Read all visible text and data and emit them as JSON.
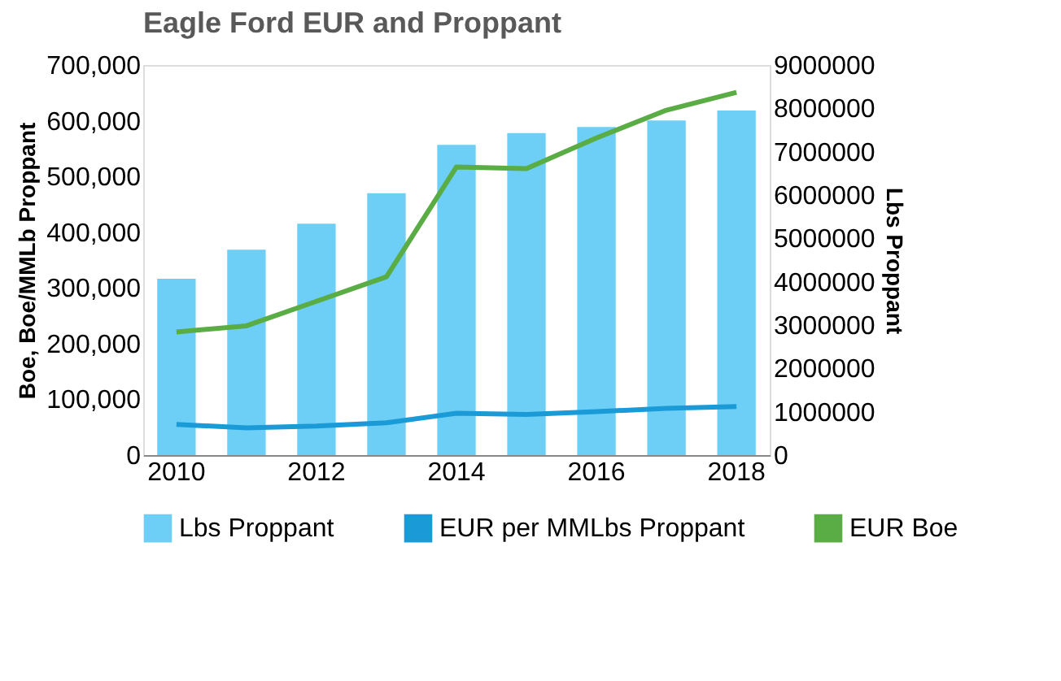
{
  "chart_data": {
    "type": "bar",
    "title": "Eagle Ford EUR  and Proppant",
    "ylabel": "Boe, Boe/MMLb Proppant",
    "y2label": "Lbs Proppant",
    "categories": [
      "2010",
      null,
      "2012",
      null,
      "2014",
      null,
      "2016",
      null,
      "2018"
    ],
    "ylim": [
      0,
      700000
    ],
    "yticks": [
      0,
      {
        "value": 100000,
        "label": "100,000"
      },
      {
        "value": 200000,
        "label": "200,000"
      },
      {
        "value": 300000,
        "label": "300,000"
      },
      {
        "value": 400000,
        "label": "400,000"
      },
      {
        "value": 500000,
        "label": "500,000"
      },
      {
        "value": 600000,
        "label": "600,000"
      },
      {
        "value": 700000,
        "label": "700,000"
      }
    ],
    "y2lim": [
      0,
      9000000
    ],
    "y2ticks": [
      0,
      1000000,
      2000000,
      3000000,
      4000000,
      5000000,
      6000000,
      7000000,
      8000000,
      9000000
    ],
    "legend": "bottom",
    "grid": false,
    "series": [
      {
        "name": "Lbs Proppant",
        "axis": "y2",
        "color": "#6dcff6",
        "values": [
          4070000,
          4740000,
          5340000,
          6040000,
          7160000,
          7430000,
          7570000,
          7720000,
          7950000
        ]
      },
      {
        "name": "EUR per MMLbs Proppant",
        "type": "line",
        "color": "#1a9bd7",
        "values": [
          55000,
          49000,
          52000,
          58000,
          75000,
          73000,
          78000,
          84000,
          87000
        ]
      },
      {
        "name": "EUR Boe",
        "type": "line",
        "color": "#5aac44",
        "values": [
          221000,
          232000,
          276000,
          320000,
          517000,
          514000,
          569000,
          619000,
          651000
        ]
      }
    ]
  }
}
